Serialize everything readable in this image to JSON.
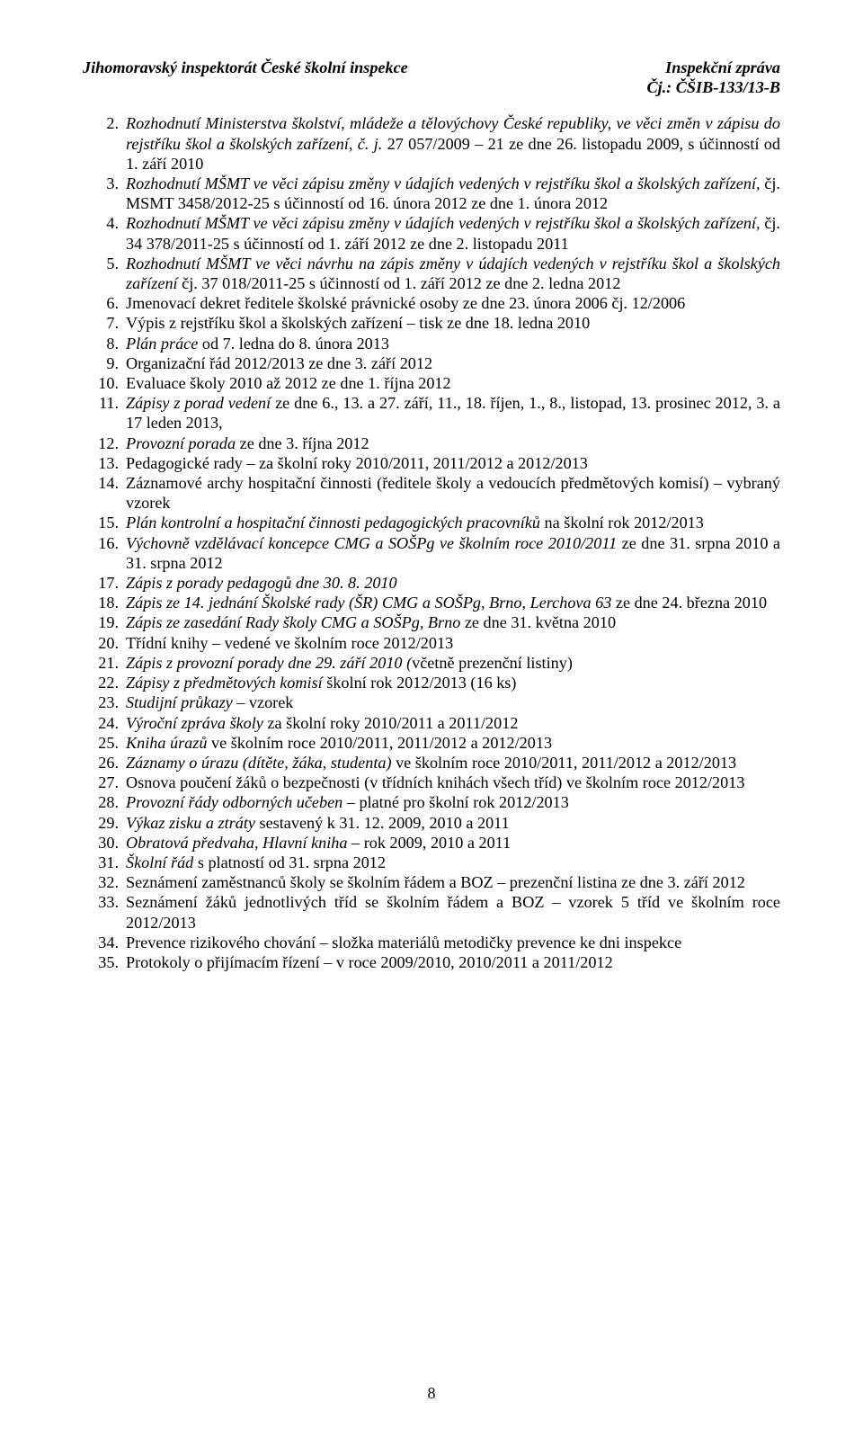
{
  "header": {
    "left": "Jihomoravský inspektorát České školní inspekce",
    "right_line1": "Inspekční zpráva",
    "right_line2": "Čj.: ČŠIB-133/13-B"
  },
  "page_number": "8",
  "items": [
    {
      "n": "2.",
      "segments": [
        {
          "i": true,
          "t": "Rozhodnutí Ministerstva školství, mládeže a tělovýchovy České republiky, ve věci změn v zápisu do rejstříku škol a školských zařízení, č. j."
        },
        {
          "i": false,
          "t": " 27 057/2009 – 21 ze dne 26. listopadu 2009, s účinností od 1. září 2010"
        }
      ]
    },
    {
      "n": "3.",
      "segments": [
        {
          "i": true,
          "t": "Rozhodnutí MŠMT ve věci zápisu změny v údajích vedených v rejstříku škol a školských zařízení,"
        },
        {
          "i": false,
          "t": " čj. MSMT 3458/2012-25 s účinností od 16. února 2012 ze dne 1. února 2012"
        }
      ]
    },
    {
      "n": "4.",
      "segments": [
        {
          "i": true,
          "t": "Rozhodnutí MŠMT ve věci zápisu změny v údajích vedených v rejstříku škol a školských zařízení,"
        },
        {
          "i": false,
          "t": " čj. 34 378/2011-25 s účinností od 1. září 2012 ze dne 2. listopadu 2011"
        }
      ]
    },
    {
      "n": "5.",
      "segments": [
        {
          "i": true,
          "t": "Rozhodnutí MŠMT ve věci návrhu na zápis změny v údajích vedených v rejstříku škol a školských zařízení"
        },
        {
          "i": false,
          "t": " čj. 37 018/2011-25 s účinností od 1. září 2012 ze dne 2. ledna 2012"
        }
      ]
    },
    {
      "n": "6.",
      "segments": [
        {
          "i": false,
          "t": "Jmenovací dekret ředitele školské právnické osoby ze dne 23. února 2006 čj. 12/2006"
        }
      ]
    },
    {
      "n": "7.",
      "segments": [
        {
          "i": false,
          "t": "Výpis z rejstříku škol a školských zařízení – tisk ze dne 18. ledna 2010"
        }
      ]
    },
    {
      "n": "8.",
      "segments": [
        {
          "i": true,
          "t": "Plán práce"
        },
        {
          "i": false,
          "t": " od 7. ledna do 8. února 2013"
        }
      ]
    },
    {
      "n": "9.",
      "segments": [
        {
          "i": false,
          "t": "Organizační řád 2012/2013 ze dne 3. září 2012"
        }
      ]
    },
    {
      "n": "10.",
      "segments": [
        {
          "i": false,
          "t": "Evaluace školy 2010 až 2012 ze dne 1. října 2012"
        }
      ]
    },
    {
      "n": "11.",
      "segments": [
        {
          "i": true,
          "t": "Zápisy z porad vedení"
        },
        {
          "i": false,
          "t": " ze dne 6., 13. a 27. září, 11., 18. říjen, 1., 8., listopad, 13. prosinec 2012, 3. a 17 leden 2013,"
        }
      ]
    },
    {
      "n": "12.",
      "segments": [
        {
          "i": true,
          "t": "Provozní porada"
        },
        {
          "i": false,
          "t": " ze dne 3. října 2012"
        }
      ]
    },
    {
      "n": "13.",
      "segments": [
        {
          "i": false,
          "t": "Pedagogické rady – za školní roky 2010/2011, 2011/2012 a 2012/2013"
        }
      ]
    },
    {
      "n": "14.",
      "segments": [
        {
          "i": false,
          "t": "Záznamové archy hospitační činnosti (ředitele školy a vedoucích předmětových komisí) – vybraný vzorek"
        }
      ]
    },
    {
      "n": "15.",
      "segments": [
        {
          "i": true,
          "t": "Plán kontrolní a hospitační činnosti pedagogických pracovníků"
        },
        {
          "i": false,
          "t": " na školní rok 2012/2013"
        }
      ]
    },
    {
      "n": "16.",
      "segments": [
        {
          "i": true,
          "t": "Výchovně vzdělávací koncepce CMG a SOŠPg ve školním roce 2010/2011"
        },
        {
          "i": false,
          "t": " ze dne 31. srpna 2010 a 31. srpna 2012"
        }
      ]
    },
    {
      "n": "17.",
      "segments": [
        {
          "i": true,
          "t": "Zápis z porady pedagogů dne 30. 8. 2010"
        }
      ]
    },
    {
      "n": "18.",
      "segments": [
        {
          "i": true,
          "t": "Zápis ze 14. jednání Školské rady (ŠR) CMG a SOŠPg, Brno, Lerchova 63"
        },
        {
          "i": false,
          "t": " ze dne 24. března 2010"
        }
      ]
    },
    {
      "n": "19.",
      "segments": [
        {
          "i": true,
          "t": "Zápis ze zasedání Rady školy CMG a SOŠPg, Brno"
        },
        {
          "i": false,
          "t": " ze dne 31. května 2010"
        }
      ]
    },
    {
      "n": "20.",
      "segments": [
        {
          "i": false,
          "t": "Třídní knihy – vedené ve školním roce 2012/2013"
        }
      ]
    },
    {
      "n": "21.",
      "segments": [
        {
          "i": true,
          "t": "Zápis z provozní porady dne 29. září 2010 ("
        },
        {
          "i": false,
          "t": "včetně prezenční listiny)"
        }
      ]
    },
    {
      "n": "22.",
      "segments": [
        {
          "i": true,
          "t": "Zápisy z předmětových komisí"
        },
        {
          "i": false,
          "t": " školní rok 2012/2013 (16 ks)"
        }
      ]
    },
    {
      "n": "23.",
      "segments": [
        {
          "i": true,
          "t": "Studijní průkazy"
        },
        {
          "i": false,
          "t": " – vzorek"
        }
      ]
    },
    {
      "n": "24.",
      "segments": [
        {
          "i": true,
          "t": "Výroční zpráva školy"
        },
        {
          "i": false,
          "t": " za školní roky 2010/2011 a 2011/2012"
        }
      ]
    },
    {
      "n": "25.",
      "segments": [
        {
          "i": true,
          "t": "Kniha úrazů"
        },
        {
          "i": false,
          "t": " ve školním roce 2010/2011, 2011/2012 a 2012/2013"
        }
      ]
    },
    {
      "n": "26.",
      "segments": [
        {
          "i": true,
          "t": "Záznamy o úrazu (dítěte, žáka, studenta)"
        },
        {
          "i": false,
          "t": " ve školním roce 2010/2011, 2011/2012 a 2012/2013"
        }
      ]
    },
    {
      "n": "27.",
      "segments": [
        {
          "i": false,
          "t": "Osnova poučení žáků o bezpečnosti (v třídních knihách všech tříd) ve školním roce 2012/2013"
        }
      ]
    },
    {
      "n": "28.",
      "segments": [
        {
          "i": true,
          "t": "Provozní řády odborných učeben"
        },
        {
          "i": false,
          "t": " – platné pro školní rok 2012/2013"
        }
      ]
    },
    {
      "n": "29.",
      "segments": [
        {
          "i": true,
          "t": "Výkaz zisku a ztráty"
        },
        {
          "i": false,
          "t": " sestavený k 31. 12. 2009, 2010 a 2011"
        }
      ]
    },
    {
      "n": "30.",
      "segments": [
        {
          "i": true,
          "t": "Obratová předvaha, Hlavní kniha"
        },
        {
          "i": false,
          "t": " – rok 2009, 2010 a 2011"
        }
      ]
    },
    {
      "n": "31.",
      "segments": [
        {
          "i": true,
          "t": "Školní řád"
        },
        {
          "i": false,
          "t": " s platností od 31. srpna 2012"
        }
      ]
    },
    {
      "n": "32.",
      "segments": [
        {
          "i": false,
          "t": "Seznámení zaměstnanců školy se školním řádem a BOZ – prezenční listina ze dne 3. září 2012"
        }
      ]
    },
    {
      "n": "33.",
      "segments": [
        {
          "i": false,
          "t": "Seznámení žáků jednotlivých tříd se školním řádem a BOZ – vzorek 5 tříd ve školním roce 2012/2013"
        }
      ]
    },
    {
      "n": "34.",
      "segments": [
        {
          "i": false,
          "t": "Prevence rizikového chování – složka materiálů metodičky prevence ke dni inspekce"
        }
      ]
    },
    {
      "n": "35.",
      "segments": [
        {
          "i": false,
          "t": "Protokoly o přijímacím řízení – v roce 2009/2010, 2010/2011 a 2011/2012"
        }
      ]
    }
  ]
}
